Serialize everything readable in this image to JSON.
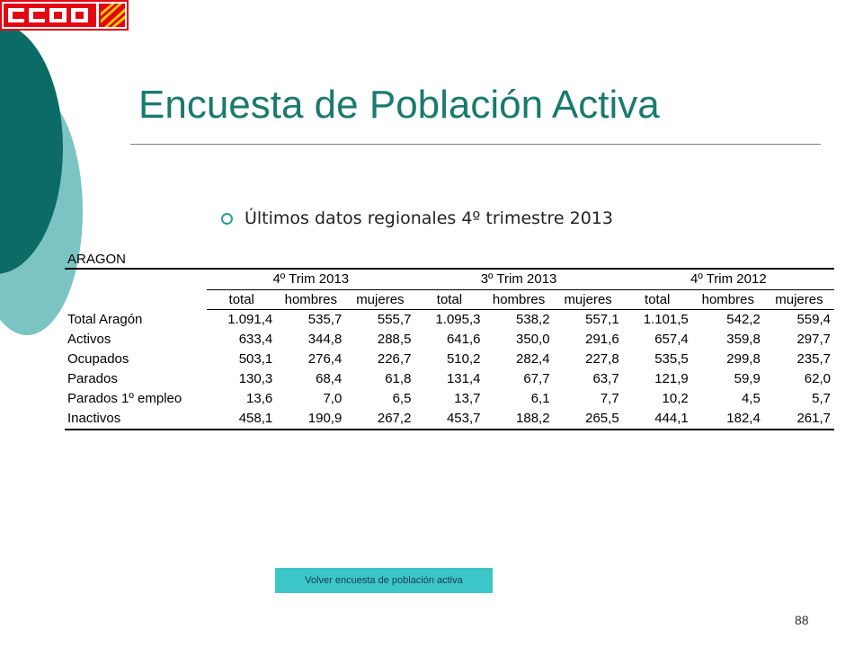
{
  "logo": {
    "text": "CCOO",
    "colors": {
      "primary": "#e30613",
      "stripes": "#ffcc00"
    }
  },
  "title": "Encuesta de Población Activa",
  "bullet": "Últimos datos regionales 4º trimestre 2013",
  "table": {
    "label": "ARAGON",
    "groups": [
      "4º Trim 2013",
      "3º Trim 2013",
      "4º Trim 2012"
    ],
    "subheaders": [
      "total",
      "hombres",
      "mujeres",
      "total",
      "hombres",
      "mujeres",
      "total",
      "hombres",
      "mujeres"
    ],
    "rows": [
      {
        "label": "Total Aragón",
        "values": [
          "1.091,4",
          "535,7",
          "555,7",
          "1.095,3",
          "538,2",
          "557,1",
          "1.101,5",
          "542,2",
          "559,4"
        ]
      },
      {
        "label": "Activos",
        "values": [
          "633,4",
          "344,8",
          "288,5",
          "641,6",
          "350,0",
          "291,6",
          "657,4",
          "359,8",
          "297,7"
        ]
      },
      {
        "label": "Ocupados",
        "values": [
          "503,1",
          "276,4",
          "226,7",
          "510,2",
          "282,4",
          "227,8",
          "535,5",
          "299,8",
          "235,7"
        ]
      },
      {
        "label": "Parados",
        "values": [
          "130,3",
          "68,4",
          "61,8",
          "131,4",
          "67,7",
          "63,7",
          "121,9",
          "59,9",
          "62,0"
        ]
      },
      {
        "label": "Parados 1º empleo",
        "values": [
          "13,6",
          "7,0",
          "6,5",
          "13,7",
          "6,1",
          "7,7",
          "10,2",
          "4,5",
          "5,7"
        ]
      },
      {
        "label": "Inactivos",
        "values": [
          "458,1",
          "190,9",
          "267,2",
          "453,7",
          "188,2",
          "265,5",
          "444,1",
          "182,4",
          "261,7"
        ]
      }
    ]
  },
  "button": "Volver encuesta de población  activa",
  "page_number": "88",
  "colors": {
    "dark_teal": "#0d6b66",
    "light_teal": "#7cc4c4",
    "title": "#1a7a6e",
    "button": "#3cc6c8"
  }
}
